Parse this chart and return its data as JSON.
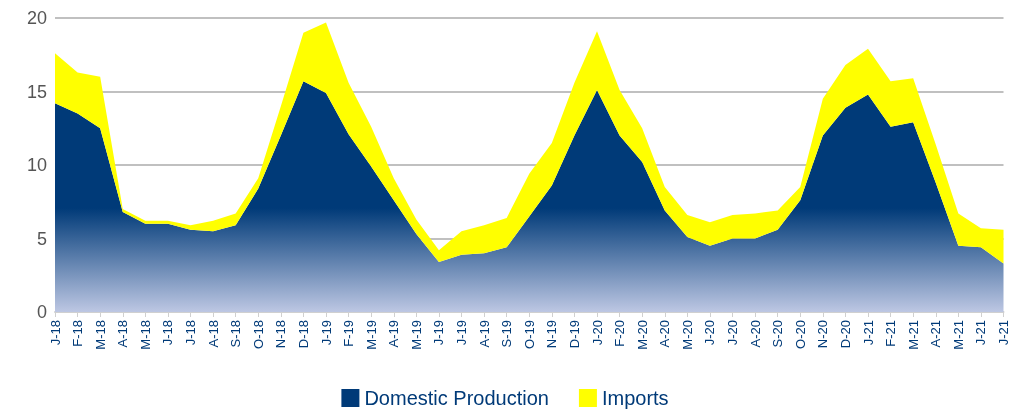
{
  "chart_data": {
    "type": "area",
    "stacked": true,
    "categories": [
      "J-18",
      "F-18",
      "M-18",
      "A-18",
      "M-18",
      "J-18",
      "J-18",
      "A-18",
      "S-18",
      "O-18",
      "N-18",
      "D-18",
      "J-19",
      "F-19",
      "M-19",
      "A-19",
      "M-19",
      "J-19",
      "J-19",
      "A-19",
      "S-19",
      "O-19",
      "N-19",
      "D-19",
      "J-20",
      "F-20",
      "M-20",
      "A-20",
      "M-20",
      "J-20",
      "J-20",
      "A-20",
      "S-20",
      "O-20",
      "N-20",
      "D-20",
      "J-21",
      "F-21",
      "M-21",
      "A-21",
      "M-21",
      "J-21",
      "J-21"
    ],
    "series": [
      {
        "name": "Domestic Production",
        "color": "#003a78",
        "values": [
          14.2,
          13.5,
          12.5,
          6.8,
          6.0,
          6.0,
          5.6,
          5.5,
          5.9,
          8.4,
          12.0,
          15.7,
          14.9,
          12.1,
          9.9,
          7.6,
          5.3,
          3.4,
          3.9,
          4.0,
          4.4,
          6.5,
          8.6,
          12.0,
          15.1,
          12.0,
          10.2,
          6.9,
          5.1,
          4.5,
          5.0,
          5.0,
          5.6,
          7.6,
          12.0,
          13.9,
          14.8,
          12.6,
          12.9,
          8.8,
          4.5,
          4.4,
          3.3
        ]
      },
      {
        "name": "Imports",
        "color": "#ffff00",
        "values": [
          3.4,
          2.8,
          3.5,
          0.2,
          0.2,
          0.2,
          0.3,
          0.7,
          0.8,
          0.7,
          2.0,
          3.3,
          4.8,
          3.5,
          2.7,
          1.5,
          1.0,
          0.8,
          1.6,
          1.9,
          2.0,
          2.9,
          2.9,
          3.6,
          4.0,
          3.1,
          2.3,
          1.6,
          1.5,
          1.6,
          1.6,
          1.7,
          1.3,
          0.9,
          2.5,
          2.9,
          3.1,
          3.1,
          3.0,
          2.6,
          2.2,
          1.3,
          2.3
        ]
      }
    ],
    "ylim": [
      0,
      20
    ],
    "yticks": [
      0,
      5,
      10,
      15,
      20
    ],
    "grid": "y",
    "legend": "bottom",
    "marker": "none"
  }
}
